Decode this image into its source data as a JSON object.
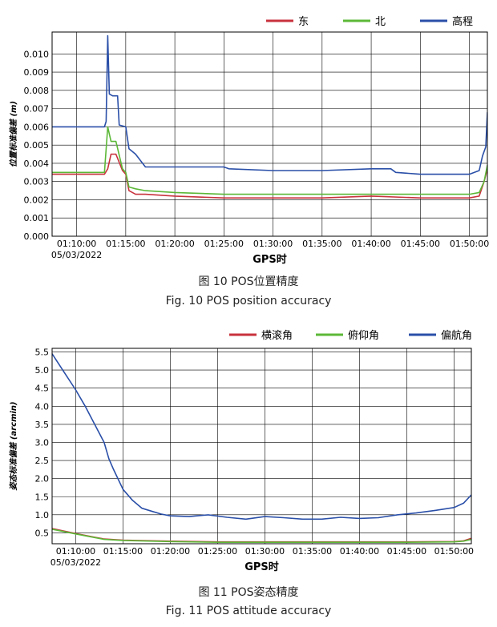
{
  "chart_data": [
    {
      "type": "line",
      "title": "",
      "xlabel": "GPS时",
      "ylabel": "位置标准偏差 (m)",
      "x_ticks": [
        "01:10:00",
        "01:15:00",
        "01:20:00",
        "01:25:00",
        "01:30:00",
        "01:35:00",
        "01:40:00",
        "01:45:00",
        "01:50:00"
      ],
      "x_date": "05/03/2022",
      "xlim": [
        "01:07:30",
        "01:51:50"
      ],
      "ylim": [
        0,
        0.0112
      ],
      "y_ticks": [
        "0.000",
        "0.001",
        "0.002",
        "0.003",
        "0.004",
        "0.005",
        "0.006",
        "0.007",
        "0.008",
        "0.009",
        "0.010"
      ],
      "grid": true,
      "legend": "top-right",
      "series": [
        {
          "name": "东",
          "color": "#c8323c",
          "x": [
            "01:07:30",
            "01:12:50",
            "01:13:10",
            "01:13:30",
            "01:14:00",
            "01:14:40",
            "01:15:00",
            "01:15:20",
            "01:16:00",
            "01:17:00",
            "01:20:00",
            "01:25:00",
            "01:30:00",
            "01:35:00",
            "01:40:00",
            "01:45:00",
            "01:50:00",
            "01:51:00",
            "01:51:30",
            "01:51:50"
          ],
          "y": [
            0.0034,
            0.0034,
            0.0037,
            0.0045,
            0.0045,
            0.0036,
            0.0034,
            0.0025,
            0.0023,
            0.0023,
            0.0022,
            0.0021,
            0.0021,
            0.0021,
            0.0022,
            0.0021,
            0.0021,
            0.0022,
            0.003,
            0.0037
          ]
        },
        {
          "name": "北",
          "color": "#5cb838",
          "x": [
            "01:07:30",
            "01:12:50",
            "01:13:10",
            "01:13:30",
            "01:14:00",
            "01:14:40",
            "01:15:00",
            "01:15:20",
            "01:16:00",
            "01:17:00",
            "01:20:00",
            "01:25:00",
            "01:30:00",
            "01:35:00",
            "01:40:00",
            "01:45:00",
            "01:50:00",
            "01:51:00",
            "01:51:30",
            "01:51:50"
          ],
          "y": [
            0.0035,
            0.0035,
            0.006,
            0.0052,
            0.0052,
            0.0037,
            0.0035,
            0.0027,
            0.0026,
            0.0025,
            0.0024,
            0.0023,
            0.0023,
            0.0023,
            0.0023,
            0.0023,
            0.0023,
            0.0024,
            0.003,
            0.0039
          ]
        },
        {
          "name": "高程",
          "color": "#2a4fa8",
          "x": [
            "01:07:30",
            "01:12:50",
            "01:13:00",
            "01:13:10",
            "01:13:20",
            "01:13:40",
            "01:14:10",
            "01:14:20",
            "01:15:00",
            "01:15:20",
            "01:16:00",
            "01:17:00",
            "01:20:00",
            "01:25:00",
            "01:25:30",
            "01:30:00",
            "01:35:00",
            "01:40:00",
            "01:42:00",
            "01:42:30",
            "01:45:00",
            "01:50:00",
            "01:51:00",
            "01:51:20",
            "01:51:40",
            "01:51:50"
          ],
          "y": [
            0.006,
            0.006,
            0.0063,
            0.011,
            0.0078,
            0.0077,
            0.0077,
            0.0061,
            0.006,
            0.0048,
            0.0045,
            0.0038,
            0.0038,
            0.0038,
            0.0037,
            0.0036,
            0.0036,
            0.0037,
            0.0037,
            0.0035,
            0.0034,
            0.0034,
            0.0036,
            0.0044,
            0.0049,
            0.0068
          ]
        }
      ]
    },
    {
      "type": "line",
      "title": "",
      "xlabel": "GPS时",
      "ylabel": "姿态标准偏差 (arcmin)",
      "x_ticks": [
        "01:10:00",
        "01:15:00",
        "01:20:00",
        "01:25:00",
        "01:30:00",
        "01:35:00",
        "01:40:00",
        "01:45:00",
        "01:50:00"
      ],
      "x_date": "05/03/2022",
      "xlim": [
        "01:07:30",
        "01:51:50"
      ],
      "ylim": [
        0.2,
        5.6
      ],
      "y_ticks": [
        "0.5",
        "1.0",
        "1.5",
        "2.0",
        "2.5",
        "3.0",
        "3.5",
        "4.0",
        "4.5",
        "5.0",
        "5.5"
      ],
      "grid": true,
      "legend": "top-right",
      "series": [
        {
          "name": "横滚角",
          "color": "#c8323c",
          "x": [
            "01:07:30",
            "01:10:00",
            "01:12:00",
            "01:13:00",
            "01:15:00",
            "01:20:00",
            "01:25:00",
            "01:30:00",
            "01:35:00",
            "01:40:00",
            "01:45:00",
            "01:50:00",
            "01:51:00",
            "01:51:50"
          ],
          "y": [
            0.62,
            0.48,
            0.38,
            0.33,
            0.3,
            0.27,
            0.25,
            0.25,
            0.25,
            0.25,
            0.25,
            0.26,
            0.28,
            0.35
          ]
        },
        {
          "name": "俯仰角",
          "color": "#5cb838",
          "x": [
            "01:07:30",
            "01:10:00",
            "01:12:00",
            "01:13:00",
            "01:15:00",
            "01:20:00",
            "01:25:00",
            "01:30:00",
            "01:35:00",
            "01:40:00",
            "01:45:00",
            "01:50:00",
            "01:51:00",
            "01:51:50"
          ],
          "y": [
            0.6,
            0.47,
            0.37,
            0.32,
            0.29,
            0.26,
            0.24,
            0.24,
            0.24,
            0.24,
            0.24,
            0.25,
            0.27,
            0.32
          ]
        },
        {
          "name": "偏航角",
          "color": "#2a4fa8",
          "x": [
            "01:07:30",
            "01:09:00",
            "01:10:00",
            "01:11:00",
            "01:12:00",
            "01:13:00",
            "01:13:30",
            "01:14:00",
            "01:15:00",
            "01:16:00",
            "01:17:00",
            "01:18:00",
            "01:19:00",
            "01:20:00",
            "01:22:00",
            "01:24:00",
            "01:26:00",
            "01:28:00",
            "01:30:00",
            "01:32:00",
            "01:34:00",
            "01:36:00",
            "01:38:00",
            "01:40:00",
            "01:42:00",
            "01:44:00",
            "01:46:00",
            "01:48:00",
            "01:50:00",
            "01:51:00",
            "01:51:50"
          ],
          "y": [
            5.45,
            4.85,
            4.45,
            4.0,
            3.5,
            3.0,
            2.55,
            2.25,
            1.7,
            1.4,
            1.18,
            1.1,
            1.02,
            0.97,
            0.95,
            1.0,
            0.93,
            0.88,
            0.95,
            0.92,
            0.88,
            0.88,
            0.93,
            0.9,
            0.92,
            1.0,
            1.05,
            1.12,
            1.2,
            1.32,
            1.55
          ]
        }
      ]
    }
  ],
  "captions": [
    {
      "cn": "图 10 POS位置精度",
      "en": "Fig. 10 POS position accuracy"
    },
    {
      "cn": "图 11 POS姿态精度",
      "en": "Fig. 11 POS attitude accuracy"
    }
  ]
}
